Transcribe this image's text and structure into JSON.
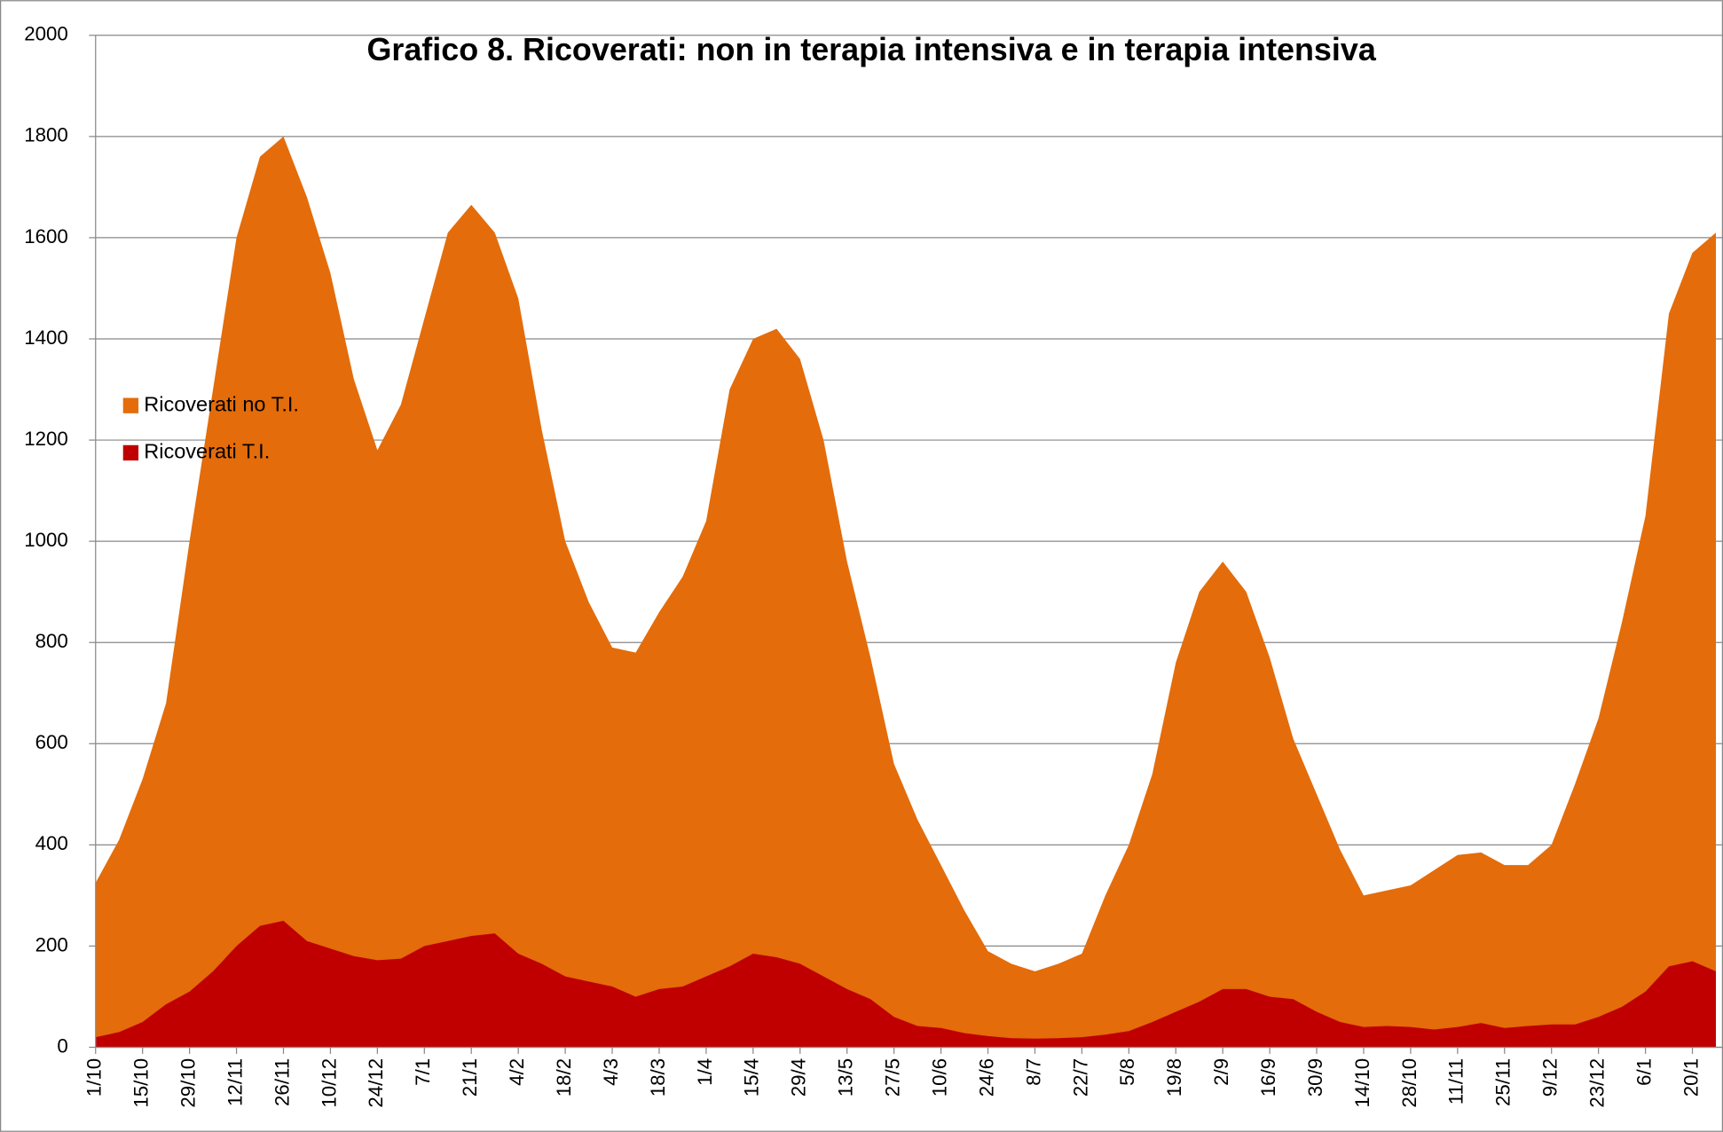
{
  "chart_data": {
    "type": "area",
    "title": "Grafico 8. Ricoverati: non in terapia intensiva e in terapia intensiva",
    "categories": [
      "1/10",
      null,
      "15/10",
      null,
      "29/10",
      null,
      "12/11",
      null,
      "26/11",
      null,
      "10/12",
      null,
      "24/12",
      null,
      "7/1",
      null,
      "21/1",
      null,
      "4/2",
      null,
      "18/2",
      null,
      "4/3",
      null,
      "18/3",
      null,
      "1/4",
      null,
      "15/4",
      null,
      "29/4",
      null,
      "13/5",
      null,
      "27/5",
      null,
      "10/6",
      null,
      "24/6",
      null,
      "8/7",
      null,
      "22/7",
      null,
      "5/8",
      null,
      "19/8",
      null,
      "2/9",
      null,
      "16/9",
      null,
      "30/9",
      null,
      "14/10",
      null,
      "28/10",
      null,
      "11/11",
      null,
      "25/11",
      null,
      "9/12",
      null,
      "23/12",
      null,
      "6/1",
      null,
      "20/1",
      null
    ],
    "series": [
      {
        "name": "Ricoverati no T.I.",
        "color": "#e46c0a",
        "values": [
          325,
          410,
          530,
          680,
          1000,
          1300,
          1600,
          1760,
          1800,
          1680,
          1530,
          1320,
          1180,
          1270,
          1440,
          1610,
          1665,
          1610,
          1480,
          1220,
          1000,
          880,
          790,
          780,
          860,
          930,
          1040,
          1300,
          1400,
          1420,
          1360,
          1200,
          960,
          770,
          560,
          450,
          360,
          270,
          190,
          165,
          150,
          165,
          185,
          300,
          400,
          540,
          760,
          900,
          960,
          900,
          770,
          610,
          500,
          390,
          300,
          310,
          320,
          350,
          380,
          385,
          360,
          360,
          400,
          520,
          650,
          840,
          1050,
          1450,
          1570,
          1610
        ]
      },
      {
        "name": "Ricoverati T.I.",
        "color": "#c00000",
        "values": [
          20,
          30,
          50,
          85,
          110,
          150,
          200,
          240,
          250,
          210,
          195,
          180,
          172,
          175,
          200,
          210,
          220,
          225,
          185,
          165,
          140,
          130,
          120,
          100,
          115,
          120,
          140,
          160,
          185,
          178,
          165,
          140,
          115,
          95,
          60,
          42,
          38,
          28,
          22,
          18,
          17,
          18,
          20,
          25,
          32,
          50,
          70,
          90,
          115,
          115,
          100,
          95,
          70,
          50,
          40,
          42,
          40,
          35,
          40,
          48,
          38,
          42,
          45,
          45,
          60,
          80,
          110,
          160,
          170,
          150
        ]
      }
    ],
    "ylim": [
      0,
      2000
    ],
    "yticks": [
      0,
      200,
      400,
      600,
      800,
      1000,
      1200,
      1400,
      1600,
      1800,
      2000
    ],
    "grid": true,
    "legend": "left"
  }
}
